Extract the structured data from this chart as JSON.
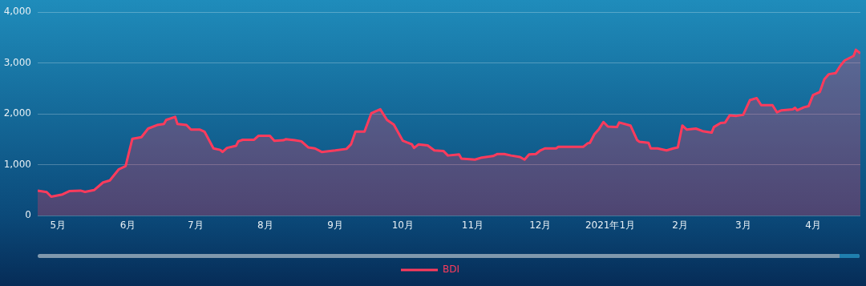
{
  "chart_data": {
    "type": "area",
    "xlim": [
      "2020-04-22",
      "2021-04-22"
    ],
    "xticks": [
      {
        "value": "2020-05-01",
        "label": "5月"
      },
      {
        "value": "2020-06-01",
        "label": "6月"
      },
      {
        "value": "2020-07-01",
        "label": "7月"
      },
      {
        "value": "2020-08-01",
        "label": "8月"
      },
      {
        "value": "2020-09-01",
        "label": "9月"
      },
      {
        "value": "2020-10-01",
        "label": "10月"
      },
      {
        "value": "2020-11-01",
        "label": "11月"
      },
      {
        "value": "2020-12-01",
        "label": "12月"
      },
      {
        "value": "2021-01-01",
        "label": "2021年1月"
      },
      {
        "value": "2021-02-01",
        "label": "2月"
      },
      {
        "value": "2021-03-01",
        "label": "3月"
      },
      {
        "value": "2021-04-01",
        "label": "4月"
      }
    ],
    "ylim": [
      0,
      4000
    ],
    "yticks": [
      0,
      {
        "value": 1000,
        "label": "1,000"
      },
      {
        "value": 2000,
        "label": "2,000"
      },
      {
        "value": 3000,
        "label": "3,000"
      },
      {
        "value": 4000,
        "label": "4,000"
      }
    ],
    "grid": "y",
    "legend": "bottom",
    "marker": "none",
    "line_style": "solid",
    "x": [
      "2020-04-22",
      "2020-04-26",
      "2020-04-28",
      "2020-05-03",
      "2020-05-06",
      "2020-05-11",
      "2020-05-13",
      "2020-05-17",
      "2020-05-21",
      "2020-05-24",
      "2020-05-28",
      "2020-05-31",
      "2020-06-03",
      "2020-06-07",
      "2020-06-10",
      "2020-06-14",
      "2020-06-17",
      "2020-06-18",
      "2020-06-22",
      "2020-06-23",
      "2020-06-27",
      "2020-06-29",
      "2020-07-03",
      "2020-07-05",
      "2020-07-09",
      "2020-07-12",
      "2020-07-13",
      "2020-07-15",
      "2020-07-19",
      "2020-07-20",
      "2020-07-22",
      "2020-07-27",
      "2020-07-29",
      "2020-08-03",
      "2020-08-05",
      "2020-08-09",
      "2020-08-10",
      "2020-08-14",
      "2020-08-17",
      "2020-08-20",
      "2020-08-23",
      "2020-08-26",
      "2020-09-01",
      "2020-09-06",
      "2020-09-08",
      "2020-09-10",
      "2020-09-14",
      "2020-09-17",
      "2020-09-21",
      "2020-09-24",
      "2020-09-27",
      "2020-10-01",
      "2020-10-05",
      "2020-10-06",
      "2020-10-08",
      "2020-10-12",
      "2020-10-15",
      "2020-10-19",
      "2020-10-21",
      "2020-10-26",
      "2020-10-27",
      "2020-11-02",
      "2020-11-05",
      "2020-11-10",
      "2020-11-12",
      "2020-11-15",
      "2020-11-18",
      "2020-11-22",
      "2020-11-24",
      "2020-11-26",
      "2020-11-29",
      "2020-12-01",
      "2020-12-03",
      "2020-12-08",
      "2020-12-09",
      "2020-12-20",
      "2020-12-22",
      "2020-12-23",
      "2020-12-25",
      "2020-12-27",
      "2020-12-29",
      "2020-12-31",
      "2021-01-04",
      "2021-01-05",
      "2021-01-10",
      "2021-01-13",
      "2021-01-14",
      "2021-01-18",
      "2021-01-19",
      "2021-01-22",
      "2021-01-26",
      "2021-01-29",
      "2021-01-31",
      "2021-02-02",
      "2021-02-04",
      "2021-02-08",
      "2021-02-11",
      "2021-02-15",
      "2021-02-16",
      "2021-02-19",
      "2021-02-21",
      "2021-02-23",
      "2021-02-26",
      "2021-03-01",
      "2021-03-04",
      "2021-03-07",
      "2021-03-09",
      "2021-03-14",
      "2021-03-16",
      "2021-03-18",
      "2021-03-23",
      "2021-03-24",
      "2021-03-25",
      "2021-03-28",
      "2021-03-30",
      "2021-04-01",
      "2021-04-04",
      "2021-04-06",
      "2021-04-08",
      "2021-04-11",
      "2021-04-13",
      "2021-04-15",
      "2021-04-19",
      "2021-04-20",
      "2021-04-22"
    ],
    "series": [
      {
        "name": "BDI",
        "color": "#ff3b5c",
        "values": [
          490,
          460,
          370,
          415,
          480,
          490,
          465,
          500,
          650,
          690,
          910,
          970,
          1510,
          1540,
          1710,
          1780,
          1800,
          1880,
          1940,
          1800,
          1780,
          1690,
          1690,
          1650,
          1320,
          1290,
          1250,
          1330,
          1370,
          1460,
          1490,
          1490,
          1570,
          1570,
          1470,
          1480,
          1500,
          1480,
          1460,
          1340,
          1320,
          1250,
          1280,
          1310,
          1400,
          1650,
          1650,
          2010,
          2090,
          1880,
          1790,
          1470,
          1400,
          1330,
          1400,
          1380,
          1280,
          1270,
          1180,
          1200,
          1120,
          1100,
          1140,
          1170,
          1210,
          1210,
          1180,
          1150,
          1100,
          1200,
          1210,
          1280,
          1320,
          1320,
          1350,
          1350,
          1420,
          1430,
          1600,
          1700,
          1840,
          1750,
          1740,
          1830,
          1770,
          1480,
          1450,
          1430,
          1320,
          1320,
          1280,
          1320,
          1340,
          1770,
          1690,
          1710,
          1660,
          1630,
          1740,
          1820,
          1830,
          1970,
          1960,
          1980,
          2270,
          2310,
          2170,
          2170,
          2030,
          2070,
          2090,
          2120,
          2070,
          2130,
          2150,
          2370,
          2430,
          2680,
          2780,
          2800,
          2940,
          3050,
          3140,
          3260,
          3190
        ]
      }
    ]
  }
}
